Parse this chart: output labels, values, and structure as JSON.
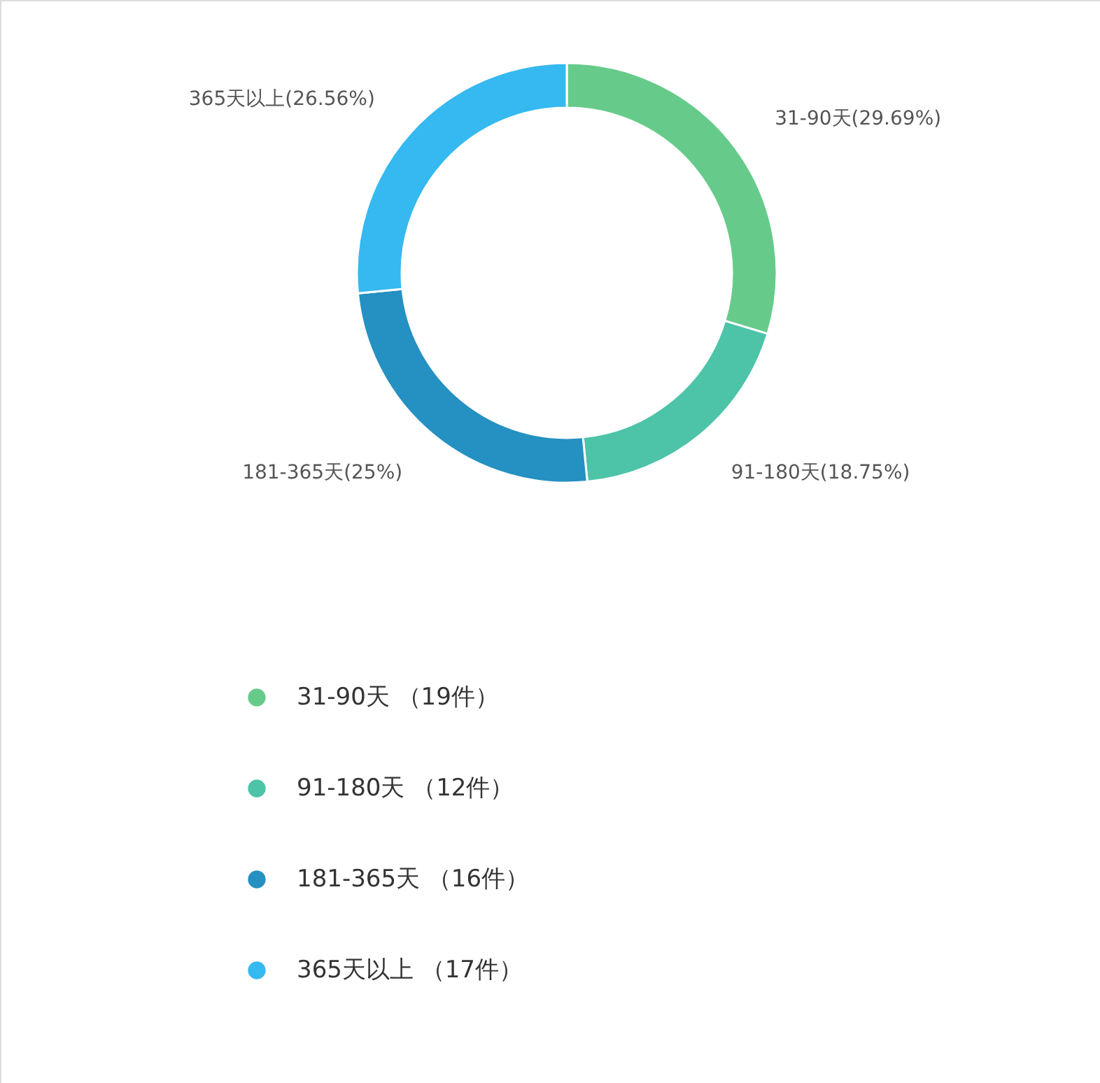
{
  "chart_data": {
    "type": "donut",
    "categories": [
      "31-90天 （19件）",
      "91-180天 （12件）",
      "181-365天 （16件）",
      "365天以上 （17件）"
    ],
    "values": [
      29.69,
      18.75,
      25,
      26.56
    ],
    "value_labels": [
      "31-90天(29.69%)",
      "91-180天(18.75%)",
      "181-365天(25%)",
      "365天以上(26.56%)"
    ],
    "colors": [
      "#66cb8a",
      "#4dc3a8",
      "#2590c2",
      "#35b9f0"
    ],
    "legend": "bottom"
  }
}
